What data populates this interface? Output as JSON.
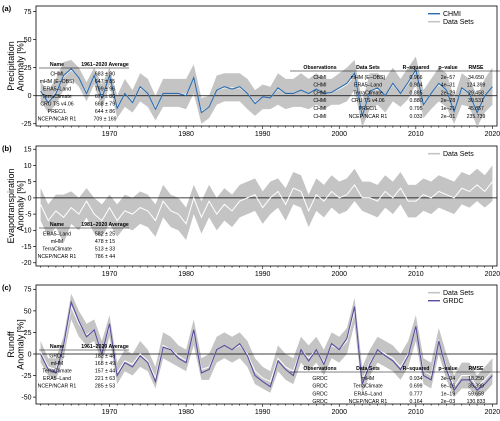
{
  "colors": {
    "band": "#c4c4c4",
    "mean_line": "#ffffff",
    "chmi": "#2b6cb0",
    "grdc": "#5a4c9e",
    "axis": "#000000",
    "zero_line": "#000000"
  },
  "x_ticks": [
    1970,
    1980,
    1990,
    2000,
    2010,
    2020
  ],
  "x_range": [
    1961,
    2020
  ],
  "chart_data": [
    {
      "type": "area",
      "panel": "(a)",
      "ylabel": "Precipitation\nAnomaly [%]",
      "ylim": [
        -27,
        80
      ],
      "yticks": [
        -25,
        0,
        25,
        50,
        75
      ],
      "legend": [
        {
          "name": "CHMI",
          "kind": "line"
        },
        {
          "name": "Data Sets",
          "kind": "band"
        }
      ],
      "years": [
        1961,
        1962,
        1963,
        1964,
        1965,
        1966,
        1967,
        1968,
        1969,
        1970,
        1971,
        1972,
        1973,
        1974,
        1975,
        1976,
        1977,
        1978,
        1979,
        1980,
        1981,
        1982,
        1983,
        1984,
        1985,
        1986,
        1987,
        1988,
        1989,
        1990,
        1991,
        1992,
        1993,
        1994,
        1995,
        1996,
        1997,
        1998,
        1999,
        2000,
        2001,
        2002,
        2003,
        2004,
        2005,
        2006,
        2007,
        2008,
        2009,
        2010,
        2011,
        2012,
        2013,
        2014,
        2015,
        2016,
        2017,
        2018,
        2019,
        2020
      ],
      "band_low": [
        -5,
        -15,
        -8,
        5,
        15,
        8,
        -5,
        10,
        -12,
        10,
        -20,
        -10,
        -15,
        -5,
        -10,
        -22,
        -10,
        -10,
        -10,
        -12,
        2,
        -25,
        -20,
        -8,
        -5,
        -5,
        -5,
        -12,
        -18,
        -12,
        -12,
        -8,
        -12,
        -10,
        -10,
        -12,
        -8,
        -12,
        -8,
        -8,
        -5,
        5,
        -28,
        -12,
        -8,
        -15,
        -5,
        -10,
        -3,
        10,
        -20,
        -12,
        -5,
        -10,
        -25,
        -8,
        -10,
        -28,
        -15,
        -8
      ],
      "band_high": [
        12,
        5,
        15,
        30,
        32,
        25,
        12,
        25,
        10,
        25,
        0,
        15,
        5,
        20,
        15,
        0,
        15,
        15,
        15,
        15,
        28,
        -2,
        0,
        18,
        20,
        20,
        20,
        15,
        5,
        10,
        8,
        20,
        15,
        15,
        20,
        15,
        20,
        15,
        15,
        20,
        25,
        32,
        -5,
        20,
        20,
        15,
        25,
        15,
        25,
        35,
        5,
        15,
        25,
        20,
        -2,
        20,
        15,
        0,
        15,
        25
      ],
      "mean": [
        3,
        -5,
        3,
        17,
        23,
        16,
        3,
        17,
        -1,
        17,
        -10,
        2,
        -5,
        7,
        2,
        -11,
        2,
        2,
        2,
        1,
        15,
        -14,
        -10,
        5,
        7,
        7,
        7,
        2,
        -6,
        -1,
        -2,
        6,
        2,
        2,
        5,
        2,
        6,
        2,
        3,
        6,
        10,
        18,
        -17,
        4,
        6,
        0,
        10,
        2,
        11,
        22,
        -7,
        2,
        10,
        5,
        -13,
        6,
        2,
        -14,
        0,
        8
      ],
      "observed": {
        "name": "CHMI",
        "values": [
          4,
          -6,
          2,
          18,
          24,
          16,
          2,
          18,
          -2,
          18,
          -11,
          2,
          -6,
          8,
          2,
          -12,
          2,
          2,
          2,
          0,
          16,
          -15,
          -10,
          5,
          8,
          6,
          8,
          2,
          -7,
          -1,
          -2,
          7,
          2,
          2,
          5,
          2,
          6,
          2,
          3,
          7,
          11,
          20,
          -18,
          4,
          7,
          0,
          11,
          2,
          12,
          23,
          -8,
          2,
          11,
          5,
          -14,
          7,
          2,
          -15,
          0,
          8
        ]
      },
      "left_table": {
        "header": [
          "Name",
          "1961–2020 Average"
        ],
        "rows": [
          [
            "CHMI",
            "683 ± 90"
          ],
          [
            "mHM (E–OBS)",
            "647 ± 85"
          ],
          [
            "ERA5–Land",
            "799 ± 96"
          ],
          [
            "TerraClimate",
            "670 ± 80"
          ],
          [
            "CRU TS v4.06",
            "668 ± 79"
          ],
          [
            "PREC/L",
            "644 ± 86"
          ],
          [
            "NCEP/NCAR R1",
            "709 ± 169"
          ]
        ]
      },
      "right_table": {
        "header": [
          "Observations",
          "Data Sets",
          "R–squared",
          "p–value",
          "RMSE"
        ],
        "rows": [
          [
            "CHMI",
            "mHM (E–OBS)",
            "0.966",
            "2e–57",
            "34.650"
          ],
          [
            "CHMI",
            "ERA5–Land",
            "0.904",
            "4e–31",
            "124.399"
          ],
          [
            "CHMI",
            "TerraClimate",
            "0.885",
            "2e–29",
            "29.458"
          ],
          [
            "CHMI",
            "CRU TS v4.06",
            "0.880",
            "2e–28",
            "30.531"
          ],
          [
            "CHMI",
            "PREC/L",
            "0.795",
            "1e–21",
            "45.857"
          ],
          [
            "CHMI",
            "NCEP/NCAR R1",
            "0.033",
            "2e–01",
            "235.739"
          ]
        ]
      }
    },
    {
      "type": "area",
      "panel": "(b)",
      "ylabel": "Evapotranspiration\nAnomaly [%]",
      "ylim": [
        -21,
        16
      ],
      "yticks": [
        -20,
        -15,
        -10,
        -5,
        0,
        5,
        10,
        15
      ],
      "legend": [
        {
          "name": "Data Sets",
          "kind": "band"
        }
      ],
      "years": [
        1961,
        1962,
        1963,
        1964,
        1965,
        1966,
        1967,
        1968,
        1969,
        1970,
        1971,
        1972,
        1973,
        1974,
        1975,
        1976,
        1977,
        1978,
        1979,
        1980,
        1981,
        1982,
        1983,
        1984,
        1985,
        1986,
        1987,
        1988,
        1989,
        1990,
        1991,
        1992,
        1993,
        1994,
        1995,
        1996,
        1997,
        1998,
        1999,
        2000,
        2001,
        2002,
        2003,
        2004,
        2005,
        2006,
        2007,
        2008,
        2009,
        2010,
        2011,
        2012,
        2013,
        2014,
        2015,
        2016,
        2017,
        2018,
        2019,
        2020
      ],
      "band_low": [
        -7,
        -12,
        -9,
        -14,
        -8,
        -10,
        -6,
        -11,
        -12,
        -8,
        -12,
        -9,
        -10,
        -8,
        -9,
        -12,
        -6,
        -9,
        -10,
        -13,
        -5,
        -11,
        -6,
        -10,
        -7,
        -9,
        -6,
        -5,
        -4,
        -8,
        -5,
        -3,
        -7,
        -2,
        -3,
        -9,
        -4,
        -6,
        -3,
        -5,
        -4,
        -1,
        -4,
        -5,
        -6,
        -3,
        -5,
        -2,
        -6,
        -6,
        -4,
        -5,
        -3,
        -4,
        -5,
        -2,
        -3,
        -1,
        -3,
        -1
      ],
      "band_high": [
        3,
        -2,
        1,
        1,
        2,
        0,
        3,
        0,
        -2,
        1,
        -2,
        1,
        0,
        2,
        1,
        -2,
        4,
        1,
        0,
        -3,
        4,
        -1,
        4,
        0,
        3,
        1,
        4,
        5,
        6,
        2,
        5,
        6,
        3,
        8,
        7,
        1,
        6,
        4,
        7,
        5,
        6,
        9,
        5,
        5,
        4,
        7,
        5,
        8,
        4,
        4,
        6,
        5,
        7,
        6,
        5,
        8,
        7,
        9,
        7,
        10
      ],
      "mean": [
        -2,
        -7,
        -4,
        -6,
        -3,
        -5,
        -1,
        -5,
        -7,
        -3,
        -7,
        -4,
        -5,
        -3,
        -4,
        -7,
        -1,
        -4,
        -5,
        -8,
        0,
        -6,
        -1,
        -5,
        -2,
        -4,
        -1,
        0,
        1,
        -3,
        0,
        2,
        -2,
        3,
        2,
        -4,
        1,
        -1,
        2,
        0,
        1,
        4,
        0,
        0,
        -1,
        2,
        0,
        3,
        -1,
        -1,
        1,
        0,
        2,
        1,
        0,
        3,
        2,
        4,
        2,
        5
      ]
    },
    {
      "type": "area",
      "panel": "(c)",
      "ylabel": "Runoff\nAnomaly [%]",
      "ylim": [
        -58,
        80
      ],
      "yticks": [
        -50,
        -25,
        0,
        25,
        50,
        75
      ],
      "legend": [
        {
          "name": "Data Sets",
          "kind": "band"
        },
        {
          "name": "GRDC",
          "kind": "line"
        }
      ],
      "years": [
        1961,
        1962,
        1963,
        1964,
        1965,
        1966,
        1967,
        1968,
        1969,
        1970,
        1971,
        1972,
        1973,
        1974,
        1975,
        1976,
        1977,
        1978,
        1979,
        1980,
        1981,
        1982,
        1983,
        1984,
        1985,
        1986,
        1987,
        1988,
        1989,
        1990,
        1991,
        1992,
        1993,
        1994,
        1995,
        1996,
        1997,
        1998,
        1999,
        2000,
        2001,
        2002,
        2003,
        2004,
        2005,
        2006,
        2007,
        2008,
        2009,
        2010,
        2011,
        2012,
        2013,
        2014,
        2015,
        2016,
        2017,
        2018,
        2019,
        2020
      ],
      "band_low": [
        -10,
        -25,
        -30,
        -5,
        40,
        20,
        10,
        15,
        -10,
        20,
        -35,
        -20,
        -25,
        -15,
        -20,
        -40,
        -5,
        -10,
        -15,
        -20,
        10,
        -30,
        -30,
        -10,
        -5,
        -10,
        -5,
        -15,
        -35,
        -40,
        -45,
        -20,
        -30,
        -35,
        -10,
        -20,
        -10,
        -25,
        -5,
        -10,
        0,
        35,
        -45,
        -25,
        -10,
        -15,
        -20,
        -30,
        -15,
        15,
        -35,
        -40,
        0,
        -30,
        -50,
        -40,
        -40,
        -50,
        -45,
        -35
      ],
      "band_high": [
        15,
        -5,
        -5,
        20,
        70,
        50,
        35,
        40,
        15,
        45,
        -10,
        5,
        0,
        15,
        5,
        -15,
        25,
        20,
        10,
        5,
        40,
        -5,
        0,
        20,
        25,
        20,
        25,
        15,
        -5,
        -15,
        -20,
        10,
        0,
        -5,
        20,
        10,
        20,
        5,
        25,
        20,
        30,
        65,
        -15,
        5,
        20,
        15,
        10,
        0,
        15,
        45,
        -5,
        -10,
        30,
        0,
        -25,
        -10,
        -10,
        -25,
        -15,
        -5
      ],
      "mean": [
        2,
        -15,
        -18,
        8,
        55,
        35,
        22,
        28,
        2,
        32,
        -22,
        -8,
        -12,
        0,
        -8,
        -28,
        10,
        5,
        -2,
        -8,
        25,
        -18,
        -15,
        5,
        10,
        5,
        10,
        0,
        -20,
        -28,
        -32,
        -5,
        -15,
        -20,
        5,
        -5,
        5,
        -10,
        10,
        5,
        15,
        50,
        -30,
        -10,
        5,
        0,
        -5,
        -15,
        0,
        30,
        -20,
        -25,
        15,
        -15,
        -38,
        -25,
        -25,
        -38,
        -30,
        -20
      ],
      "observed": {
        "name": "GRDC",
        "values": [
          0,
          -18,
          -22,
          10,
          60,
          38,
          20,
          28,
          0,
          35,
          -25,
          -10,
          -15,
          -2,
          -10,
          -32,
          8,
          5,
          -5,
          -10,
          28,
          -22,
          -18,
          5,
          10,
          5,
          12,
          -2,
          -25,
          -32,
          -38,
          -8,
          -18,
          -25,
          5,
          -8,
          5,
          -12,
          12,
          5,
          18,
          55,
          -35,
          -12,
          5,
          -2,
          -8,
          -18,
          -2,
          32,
          -25,
          -30,
          15,
          -18,
          -42,
          -30,
          -30,
          -42,
          -35,
          -25
        ]
      },
      "left_table": {
        "header": [
          "Name",
          "1961–2020 Average"
        ],
        "rows": [
          [
            "GRDC",
            "182 ± 48"
          ],
          [
            "mHM",
            "168 ± 49"
          ],
          [
            "TerraClimate",
            "157 ± 44"
          ],
          [
            "ERA5–Land",
            "221 ± 63"
          ],
          [
            "NCEP/NCAR R1",
            "285 ± 53"
          ]
        ]
      },
      "right_table": {
        "header": [
          "Observations",
          "Data Sets",
          "R–squared",
          "p–value",
          "RMSE"
        ],
        "rows": [
          [
            "GRDC",
            "mHM",
            "0.934",
            "3e–34",
            "18.250"
          ],
          [
            "GRDC",
            "TerraClimate",
            "0.699",
            "6e–16",
            "35.399"
          ],
          [
            "GRDC",
            "ERA5–Land",
            "0.777",
            "1e–19",
            "59.659"
          ],
          [
            "GRDC",
            "NCEP/NCAR R1",
            "0.164",
            "2e–03",
            "130.833"
          ]
        ]
      }
    }
  ],
  "panel_b_left_table": {
    "header": [
      "Name",
      "1981–2020 Average"
    ],
    "rows": [
      [
        "ERA5–Land",
        "582 ± 25"
      ],
      [
        "mHM",
        "478 ± 15"
      ],
      [
        "TerraClimate",
        "513 ± 33"
      ],
      [
        "NCEP/NCAR R1",
        "786 ± 44"
      ]
    ]
  }
}
